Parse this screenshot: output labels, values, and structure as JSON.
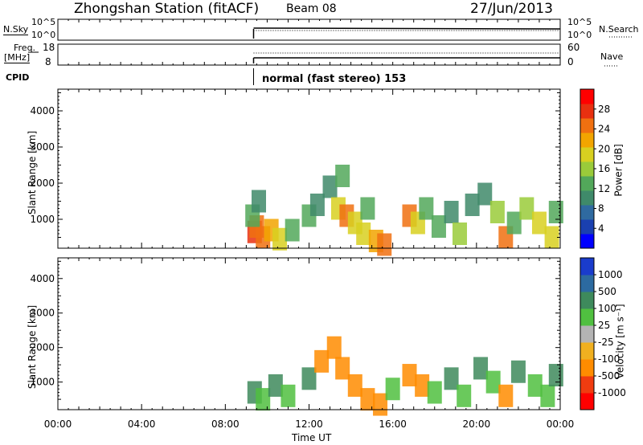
{
  "header": {
    "station": "Zhongshan Station (fitACF)",
    "beam": "Beam 08",
    "date": "27/Jun/2013"
  },
  "strips": {
    "nsky_label": "N.Sky",
    "nsky_ticks": [
      "10^5",
      "10^0"
    ],
    "nsearch_label": "N.Search",
    "nsearch_ticks": [
      "10^5",
      "10^0"
    ],
    "freq_label": "Freq.",
    "freq_unit": "[MHz]",
    "freq_ticks": [
      "18",
      "8"
    ],
    "nave_label": "Nave",
    "nave_ticks": [
      "60",
      "0"
    ],
    "cpid_label": "CPID",
    "cpid_text": "normal (fast stereo) 153"
  },
  "colors": {
    "power": [
      "#0000ff",
      "#1a40b0",
      "#2f6aa0",
      "#3f8a6a",
      "#52a85a",
      "#9acb3a",
      "#d8d020",
      "#f2a500",
      "#f07010",
      "#e83010",
      "#ff0000"
    ],
    "velocity": [
      "#ff0000",
      "#f03c10",
      "#ff8c00",
      "#f0b020",
      "#b4b4b4",
      "#50c040",
      "#3e8a5c",
      "#2c6aa0",
      "#1a3ccc"
    ]
  },
  "chart_data": [
    {
      "type": "heatmap",
      "title": "Power",
      "xlabel": "",
      "ylabel": "Slant Range [km]",
      "colorbar_label": "Power [dB]",
      "colorbar_ticks": [
        "28",
        "24",
        "20",
        "16",
        "12",
        "8",
        "4"
      ],
      "colorbar_range": [
        0,
        32
      ],
      "xlim": [
        0,
        24
      ],
      "ylim": [
        200,
        4600
      ],
      "yticks": [
        "4000",
        "3000",
        "2000",
        "1000"
      ],
      "cells": [
        {
          "t": 9.4,
          "r": 650,
          "v": 28
        },
        {
          "t": 9.5,
          "r": 800,
          "v": 26
        },
        {
          "t": 9.8,
          "r": 500,
          "v": 24
        },
        {
          "t": 10.2,
          "r": 700,
          "v": 22
        },
        {
          "t": 10.6,
          "r": 450,
          "v": 18
        },
        {
          "t": 9.3,
          "r": 1100,
          "v": 12
        },
        {
          "t": 9.6,
          "r": 1500,
          "v": 8
        },
        {
          "t": 11.2,
          "r": 700,
          "v": 14
        },
        {
          "t": 12.0,
          "r": 1100,
          "v": 12
        },
        {
          "t": 12.4,
          "r": 1400,
          "v": 10
        },
        {
          "t": 13.0,
          "r": 1900,
          "v": 8
        },
        {
          "t": 13.4,
          "r": 1300,
          "v": 20
        },
        {
          "t": 13.8,
          "r": 1100,
          "v": 24
        },
        {
          "t": 14.2,
          "r": 900,
          "v": 18
        },
        {
          "t": 13.6,
          "r": 2200,
          "v": 12
        },
        {
          "t": 14.6,
          "r": 600,
          "v": 20
        },
        {
          "t": 15.2,
          "r": 400,
          "v": 22
        },
        {
          "t": 15.6,
          "r": 300,
          "v": 26
        },
        {
          "t": 14.8,
          "r": 1300,
          "v": 14
        },
        {
          "t": 16.8,
          "r": 1100,
          "v": 26
        },
        {
          "t": 17.2,
          "r": 900,
          "v": 18
        },
        {
          "t": 17.6,
          "r": 1300,
          "v": 12
        },
        {
          "t": 18.2,
          "r": 800,
          "v": 14
        },
        {
          "t": 18.8,
          "r": 1200,
          "v": 10
        },
        {
          "t": 19.2,
          "r": 600,
          "v": 16
        },
        {
          "t": 19.8,
          "r": 1400,
          "v": 8
        },
        {
          "t": 20.4,
          "r": 1700,
          "v": 10
        },
        {
          "t": 21.0,
          "r": 1200,
          "v": 16
        },
        {
          "t": 21.4,
          "r": 500,
          "v": 26
        },
        {
          "t": 21.8,
          "r": 900,
          "v": 12
        },
        {
          "t": 22.4,
          "r": 1300,
          "v": 16
        },
        {
          "t": 23.0,
          "r": 900,
          "v": 18
        },
        {
          "t": 23.6,
          "r": 500,
          "v": 20
        },
        {
          "t": 23.8,
          "r": 1200,
          "v": 12
        }
      ]
    },
    {
      "type": "heatmap",
      "title": "Velocity",
      "xlabel": "Time UT",
      "ylabel": "Slant Range [km]",
      "colorbar_label": "Velocity [m s⁻¹]",
      "colorbar_ticks": [
        "1000",
        "500",
        "100",
        "25",
        "-25",
        "-100",
        "-500",
        "-1000"
      ],
      "xlim": [
        0,
        24
      ],
      "ylim": [
        200,
        4600
      ],
      "yticks": [
        "4000",
        "3000",
        "2000",
        "1000"
      ],
      "xticks": [
        "00:00",
        "04:00",
        "08:00",
        "12:00",
        "16:00",
        "20:00",
        "00:00"
      ],
      "cells": [
        {
          "t": 9.4,
          "r": 700,
          "v": 500
        },
        {
          "t": 9.8,
          "r": 500,
          "v": 100
        },
        {
          "t": 10.4,
          "r": 900,
          "v": 300
        },
        {
          "t": 11.0,
          "r": 600,
          "v": 50
        },
        {
          "t": 12.0,
          "r": 1100,
          "v": 500
        },
        {
          "t": 12.6,
          "r": 1600,
          "v": -100
        },
        {
          "t": 13.2,
          "r": 2000,
          "v": -300
        },
        {
          "t": 13.6,
          "r": 1400,
          "v": -200
        },
        {
          "t": 14.2,
          "r": 900,
          "v": -150
        },
        {
          "t": 14.8,
          "r": 500,
          "v": -300
        },
        {
          "t": 15.4,
          "r": 350,
          "v": -400
        },
        {
          "t": 16.0,
          "r": 800,
          "v": 80
        },
        {
          "t": 16.8,
          "r": 1200,
          "v": -200
        },
        {
          "t": 17.4,
          "r": 900,
          "v": -100
        },
        {
          "t": 18.0,
          "r": 700,
          "v": 100
        },
        {
          "t": 18.8,
          "r": 1100,
          "v": 500
        },
        {
          "t": 19.4,
          "r": 600,
          "v": 80
        },
        {
          "t": 20.2,
          "r": 1400,
          "v": 300
        },
        {
          "t": 20.8,
          "r": 1000,
          "v": 100
        },
        {
          "t": 21.4,
          "r": 600,
          "v": -200
        },
        {
          "t": 22.0,
          "r": 1300,
          "v": 500
        },
        {
          "t": 22.8,
          "r": 900,
          "v": 100
        },
        {
          "t": 23.4,
          "r": 600,
          "v": 80
        },
        {
          "t": 23.8,
          "r": 1200,
          "v": 300
        }
      ]
    }
  ]
}
